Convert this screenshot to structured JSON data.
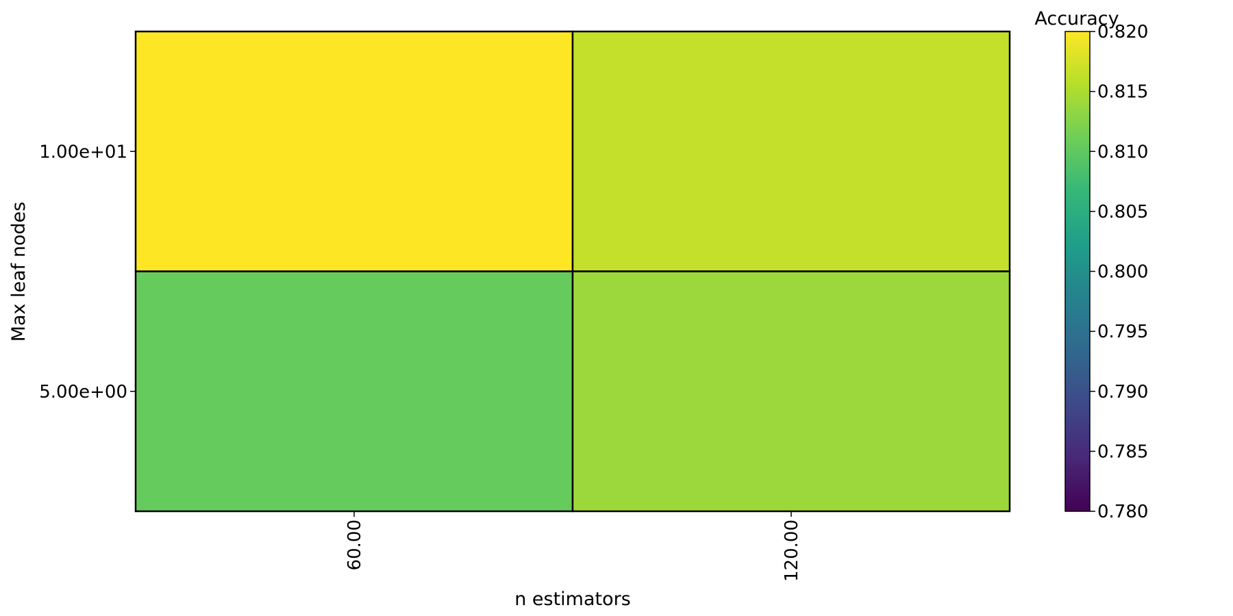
{
  "chart_data": {
    "type": "heatmap",
    "xlabel": "n estimators",
    "ylabel": "Max leaf nodes",
    "x_categories": [
      "60.00",
      "120.00"
    ],
    "y_categories": [
      "1.00e+01",
      "5.00e+00"
    ],
    "values": [
      [
        0.82,
        0.8165
      ],
      [
        0.8105,
        0.814
      ]
    ],
    "colorbar": {
      "title": "Accuracy",
      "range": [
        0.78,
        0.82
      ],
      "ticks": [
        "0.780",
        "0.785",
        "0.790",
        "0.795",
        "0.800",
        "0.805",
        "0.810",
        "0.815",
        "0.820"
      ],
      "colormap": "viridis"
    },
    "colormap_stops": [
      "#440154",
      "#482878",
      "#3e4989",
      "#31688e",
      "#26828e",
      "#1f9e89",
      "#35b779",
      "#6ece58",
      "#b5de2b",
      "#fde725"
    ]
  }
}
